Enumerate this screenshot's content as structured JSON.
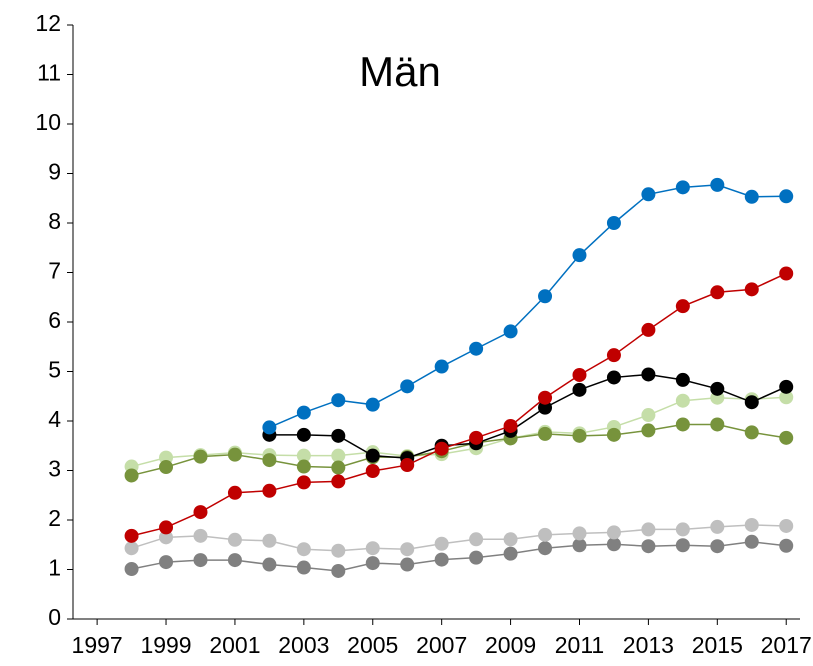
{
  "chart_data": {
    "type": "line",
    "title": "Män",
    "x": [
      1998,
      1999,
      2000,
      2001,
      2002,
      2003,
      2004,
      2005,
      2006,
      2007,
      2008,
      2009,
      2010,
      2011,
      2012,
      2013,
      2014,
      2015,
      2016,
      2017
    ],
    "xlim": [
      1996.3,
      2017.4
    ],
    "xticks": [
      1997,
      1999,
      2001,
      2003,
      2005,
      2007,
      2009,
      2011,
      2013,
      2015,
      2017
    ],
    "ylim": [
      0,
      12
    ],
    "yticks": [
      0,
      1,
      2,
      3,
      4,
      5,
      6,
      7,
      8,
      9,
      10,
      11,
      12
    ],
    "series": [
      {
        "color": "#808080",
        "values": [
          1.01,
          1.15,
          1.19,
          1.19,
          1.1,
          1.04,
          0.97,
          1.13,
          1.1,
          1.2,
          1.24,
          1.32,
          1.43,
          1.49,
          1.51,
          1.47,
          1.49,
          1.47,
          1.56,
          1.48
        ]
      },
      {
        "color": "#bfbfbf",
        "values": [
          1.43,
          1.65,
          1.68,
          1.6,
          1.58,
          1.41,
          1.38,
          1.43,
          1.41,
          1.52,
          1.61,
          1.61,
          1.7,
          1.73,
          1.75,
          1.81,
          1.81,
          1.86,
          1.9,
          1.88
        ]
      },
      {
        "color": "#c5dea8",
        "values": [
          3.08,
          3.26,
          3.31,
          3.36,
          3.31,
          3.3,
          3.3,
          3.37,
          3.29,
          3.33,
          3.45,
          3.65,
          3.78,
          3.75,
          3.88,
          4.12,
          4.41,
          4.47,
          4.44,
          4.48
        ]
      },
      {
        "color": "#77933c",
        "values": [
          2.9,
          3.07,
          3.28,
          3.32,
          3.21,
          3.08,
          3.06,
          3.27,
          3.27,
          3.39,
          3.56,
          3.65,
          3.74,
          3.7,
          3.72,
          3.81,
          3.93,
          3.93,
          3.77,
          3.66
        ]
      },
      {
        "color": "#000000",
        "values": [
          null,
          null,
          null,
          null,
          3.72,
          3.72,
          3.7,
          3.3,
          3.25,
          3.5,
          3.55,
          3.8,
          4.27,
          4.63,
          4.88,
          4.94,
          4.83,
          4.65,
          4.38,
          4.69
        ]
      },
      {
        "color": "#c00000",
        "values": [
          1.68,
          1.85,
          2.16,
          2.55,
          2.59,
          2.76,
          2.78,
          2.99,
          3.11,
          3.44,
          3.66,
          3.9,
          4.47,
          4.93,
          5.33,
          5.84,
          6.32,
          6.6,
          6.66,
          6.98
        ]
      },
      {
        "color": "#0070c0",
        "values": [
          null,
          null,
          null,
          null,
          3.87,
          4.17,
          4.42,
          4.33,
          4.7,
          5.1,
          5.46,
          5.81,
          6.52,
          7.35,
          8.0,
          8.58,
          8.72,
          8.77,
          8.53,
          8.54
        ]
      }
    ]
  }
}
